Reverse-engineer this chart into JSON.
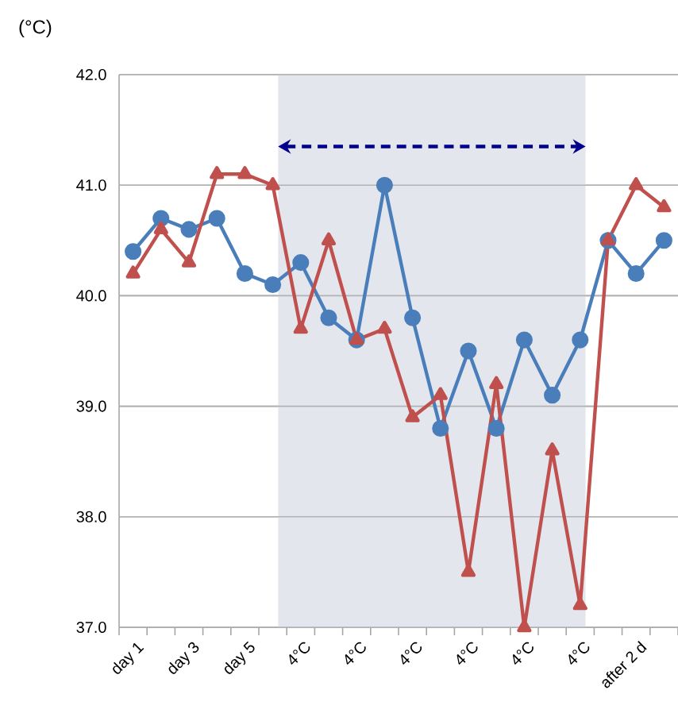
{
  "chart_data": {
    "type": "line",
    "annotations": [
      "(°C)"
    ],
    "categories": [
      "day 1",
      null,
      "day 3",
      null,
      "day 5",
      null,
      "4°C",
      null,
      "4°C",
      null,
      "4°C",
      null,
      "4°C",
      null,
      "4°C",
      null,
      "4°C",
      null,
      "after 2 d",
      null
    ],
    "series": [
      {
        "color": "#4a7ebb",
        "marker": "circle",
        "values": [
          40.4,
          40.7,
          40.6,
          40.7,
          40.2,
          40.1,
          40.3,
          39.8,
          39.6,
          41.0,
          39.8,
          38.8,
          39.5,
          38.8,
          39.6,
          39.1,
          39.6,
          40.5,
          40.2,
          40.5
        ]
      },
      {
        "color": "#c0504d",
        "marker": "triangle",
        "values": [
          40.2,
          40.6,
          40.3,
          41.1,
          41.1,
          41.0,
          39.7,
          40.5,
          39.6,
          39.7,
          38.9,
          39.1,
          37.5,
          39.2,
          37.0,
          38.6,
          37.2,
          40.5,
          41.0,
          40.8
        ]
      }
    ],
    "ylim": [
      37,
      42
    ],
    "yticks": [
      {
        "value": 37,
        "label": "37.0"
      },
      {
        "value": 38,
        "label": "38.0"
      },
      {
        "value": 39,
        "label": "39.0"
      },
      {
        "value": 40,
        "label": "40.0"
      },
      {
        "value": 41,
        "label": "41.0"
      },
      {
        "value": 42,
        "label": "42.0"
      }
    ],
    "grid": "y"
  }
}
